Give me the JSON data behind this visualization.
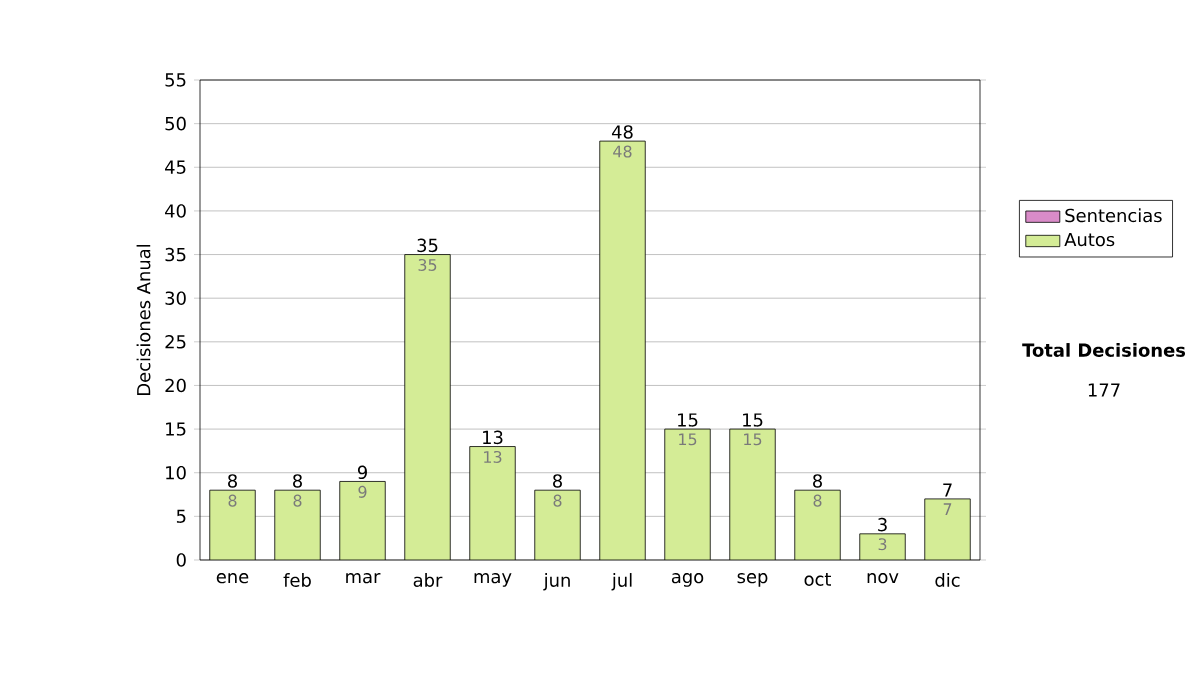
{
  "chart_data": {
    "type": "bar",
    "stacked": true,
    "ylabel": "Decisiones Anual",
    "categories": [
      "ene",
      "feb",
      "mar",
      "abr",
      "may",
      "jun",
      "jul",
      "ago",
      "sep",
      "oct",
      "nov",
      "dic"
    ],
    "series": [
      {
        "name": "Sentencias",
        "color": "#d98bc8",
        "values": [
          null,
          null,
          null,
          null,
          null,
          null,
          null,
          null,
          null,
          null,
          null,
          null
        ]
      },
      {
        "name": "Autos",
        "color": "#d4ec96",
        "values": [
          8,
          8,
          9,
          35,
          13,
          8,
          48,
          15,
          15,
          8,
          3,
          7
        ],
        "value_labels": [
          "8",
          "8",
          "9",
          "35",
          "13",
          "8",
          "48",
          "15",
          "15",
          "8",
          "3",
          "7"
        ]
      }
    ],
    "totals": [
      "8",
      "8",
      "9",
      "35",
      "13",
      "8",
      "48",
      "15",
      "15",
      "8",
      "3",
      "7"
    ],
    "ylim": [
      0,
      55
    ],
    "yticks": [
      0,
      5,
      10,
      15,
      20,
      25,
      30,
      35,
      40,
      45,
      50,
      55
    ],
    "grid": "y",
    "legend": "right",
    "annotations": [
      "Total Decisiones",
      "177"
    ]
  }
}
